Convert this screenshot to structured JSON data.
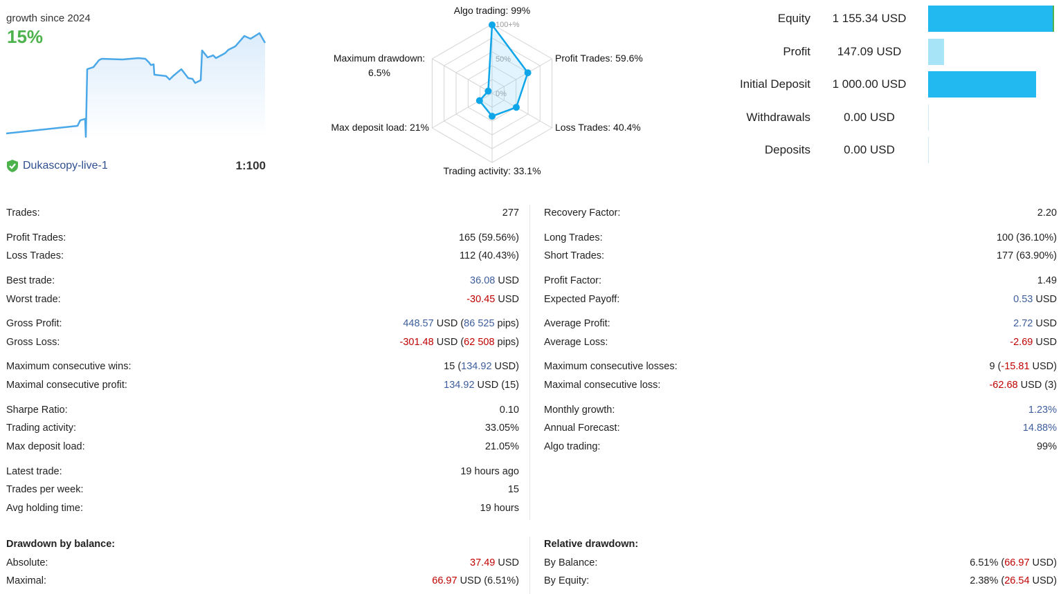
{
  "growth": {
    "label": "growth since 2024",
    "value": "15%",
    "line_color": "#4aa8e8",
    "series_percent": [
      0,
      1.26,
      2.18,
      2.41,
      -0.57,
      10.65,
      10.88,
      10.99,
      12.14,
      12.37,
      12.26,
      12.49,
      12.37,
      11.8,
      11.34,
      11.45,
      9.74,
      9.51,
      8.93,
      9.51,
      10.65,
      9.16,
      9.05,
      8.36,
      8.82,
      13.75,
      12.6,
      12.94,
      12.49,
      13.29,
      13.86,
      14.43,
      16.15,
      15.69,
      16.61,
      15.0
    ]
  },
  "account": {
    "server": "Dukascopy-live-1",
    "server_icon": "shield-check-icon",
    "leverage": "1:100"
  },
  "radar": {
    "color": "#0ea5e9",
    "scale_labels": [
      "100+%",
      "50%",
      "0%"
    ],
    "axes": [
      {
        "label": "Algo trading: 99%",
        "value": 99
      },
      {
        "label": "Profit Trades: 59.6%",
        "value": 59.6
      },
      {
        "label": "Loss Trades: 40.4%",
        "value": 40.4
      },
      {
        "label": "Trading activity: 33.1%",
        "value": 33.1
      },
      {
        "label": "Max deposit load: 21%",
        "value": 21
      },
      {
        "label": "Maximum drawdown:",
        "label2": "6.5%",
        "value": 6.5
      }
    ]
  },
  "balance": {
    "bar_color": "#22b8f0",
    "profit_color": "#a8e4f8",
    "items": [
      {
        "label": "Equity",
        "value": "1 155.34 USD",
        "amount": 1155.34
      },
      {
        "label": "Profit",
        "value": "147.09 USD",
        "amount": 147.09
      },
      {
        "label": "Initial Deposit",
        "value": "1 000.00 USD",
        "amount": 1000
      },
      {
        "label": "Withdrawals",
        "value": "0.00 USD",
        "amount": 0
      },
      {
        "label": "Deposits",
        "value": "0.00 USD",
        "amount": 0
      }
    ]
  },
  "stats_left": [
    {
      "label": "Trades:",
      "parts": [
        {
          "t": "277"
        }
      ]
    },
    {
      "label": "Profit Trades:",
      "parts": [
        {
          "t": "165 (59.56%)"
        }
      ]
    },
    {
      "label": "Loss Trades:",
      "parts": [
        {
          "t": "112 (40.43%)"
        }
      ]
    },
    {
      "label": "Best trade:",
      "parts": [
        {
          "t": "36.08",
          "c": "blue"
        },
        {
          "t": " USD"
        }
      ]
    },
    {
      "label": "Worst trade:",
      "parts": [
        {
          "t": "-30.45",
          "c": "red"
        },
        {
          "t": " USD"
        }
      ]
    },
    {
      "label": "Gross Profit:",
      "parts": [
        {
          "t": "448.57",
          "c": "blue"
        },
        {
          "t": " USD ("
        },
        {
          "t": "86 525",
          "c": "blue"
        },
        {
          "t": " pips)"
        }
      ]
    },
    {
      "label": "Gross Loss:",
      "parts": [
        {
          "t": "-301.48",
          "c": "red"
        },
        {
          "t": " USD ("
        },
        {
          "t": "62 508",
          "c": "red"
        },
        {
          "t": " pips)"
        }
      ]
    },
    {
      "label": "Maximum consecutive wins:",
      "parts": [
        {
          "t": "15 ("
        },
        {
          "t": "134.92",
          "c": "blue"
        },
        {
          "t": " USD)"
        }
      ]
    },
    {
      "label": "Maximal consecutive profit:",
      "parts": [
        {
          "t": "134.92",
          "c": "blue"
        },
        {
          "t": " USD (15)"
        }
      ]
    },
    {
      "label": "Sharpe Ratio:",
      "parts": [
        {
          "t": "0.10"
        }
      ]
    },
    {
      "label": "Trading activity:",
      "parts": [
        {
          "t": "33.05%"
        }
      ]
    },
    {
      "label": "Max deposit load:",
      "parts": [
        {
          "t": "21.05%"
        }
      ]
    },
    {
      "label": "Latest trade:",
      "parts": [
        {
          "t": "19 hours ago"
        }
      ]
    },
    {
      "label": "Trades per week:",
      "parts": [
        {
          "t": "15"
        }
      ]
    },
    {
      "label": "Avg holding time:",
      "parts": [
        {
          "t": "19 hours"
        }
      ]
    },
    {
      "label": "Drawdown by balance:",
      "bold": true,
      "parts": []
    },
    {
      "label": "Absolute:",
      "parts": [
        {
          "t": "37.49",
          "c": "red"
        },
        {
          "t": " USD"
        }
      ]
    },
    {
      "label": "Maximal:",
      "parts": [
        {
          "t": "66.97",
          "c": "red"
        },
        {
          "t": " USD (6.51%)"
        }
      ]
    }
  ],
  "stats_right": [
    {
      "label": "Recovery Factor:",
      "parts": [
        {
          "t": "2.20"
        }
      ]
    },
    {
      "label": "Long Trades:",
      "parts": [
        {
          "t": "100 (36.10%)"
        }
      ]
    },
    {
      "label": "Short Trades:",
      "parts": [
        {
          "t": "177 (63.90%)"
        }
      ]
    },
    {
      "label": "Profit Factor:",
      "parts": [
        {
          "t": "1.49"
        }
      ]
    },
    {
      "label": "Expected Payoff:",
      "parts": [
        {
          "t": "0.53",
          "c": "blue"
        },
        {
          "t": " USD"
        }
      ]
    },
    {
      "label": "Average Profit:",
      "parts": [
        {
          "t": "2.72",
          "c": "blue"
        },
        {
          "t": " USD"
        }
      ]
    },
    {
      "label": "Average Loss:",
      "parts": [
        {
          "t": "-2.69",
          "c": "red"
        },
        {
          "t": " USD"
        }
      ]
    },
    {
      "label": "Maximum consecutive losses:",
      "parts": [
        {
          "t": "9 ("
        },
        {
          "t": "-15.81",
          "c": "red"
        },
        {
          "t": " USD)"
        }
      ]
    },
    {
      "label": "Maximal consecutive loss:",
      "parts": [
        {
          "t": "-62.68",
          "c": "red"
        },
        {
          "t": " USD (3)"
        }
      ]
    },
    {
      "label": "Monthly growth:",
      "parts": [
        {
          "t": "1.23%",
          "c": "blue"
        }
      ]
    },
    {
      "label": "Annual Forecast:",
      "parts": [
        {
          "t": "14.88%",
          "c": "blue"
        }
      ]
    },
    {
      "label": "Algo trading:",
      "parts": [
        {
          "t": "99%"
        }
      ]
    },
    {
      "label": "Relative drawdown:",
      "bold": true,
      "parts": []
    },
    {
      "label": "By Balance:",
      "parts": [
        {
          "t": "6.51% ("
        },
        {
          "t": "66.97",
          "c": "red"
        },
        {
          "t": " USD)"
        }
      ]
    },
    {
      "label": "By Equity:",
      "parts": [
        {
          "t": "2.38% ("
        },
        {
          "t": "26.54",
          "c": "red"
        },
        {
          "t": " USD)"
        }
      ]
    }
  ]
}
